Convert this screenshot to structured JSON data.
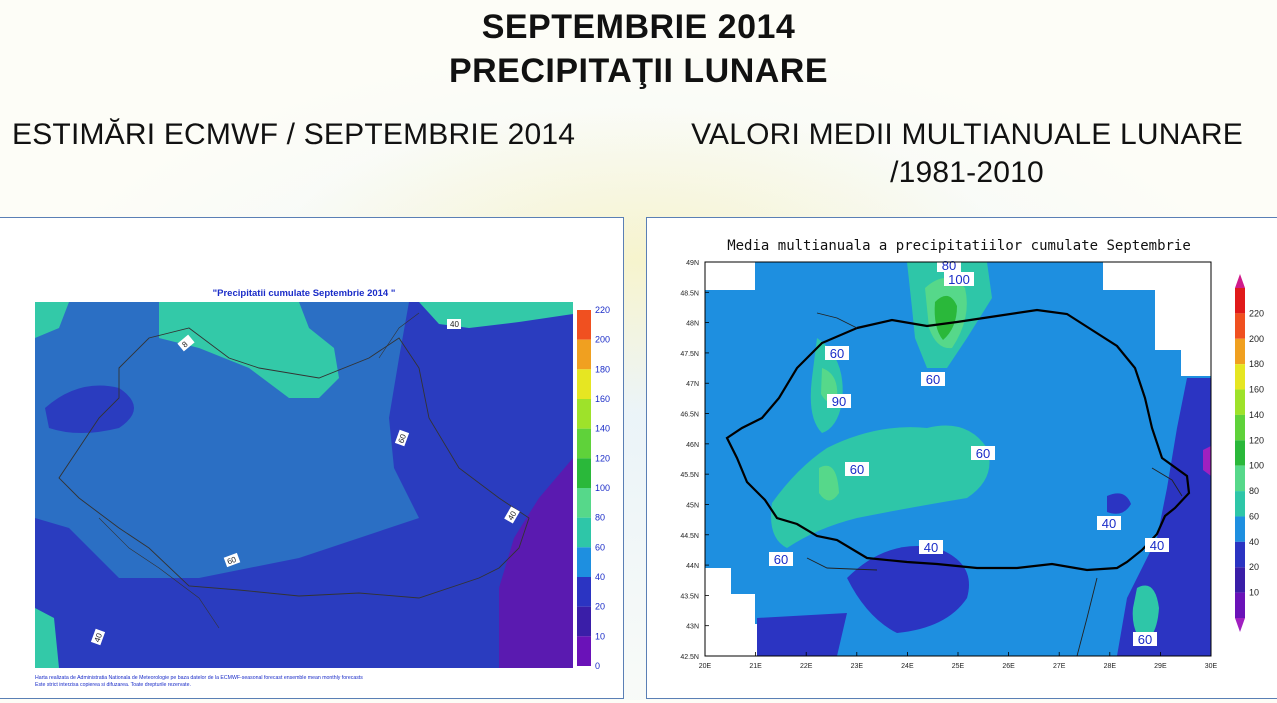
{
  "header": {
    "title_line1": "SEPTEMBRIE 2014",
    "title_line2": "PRECIPITAŢII LUNARE"
  },
  "left_panel": {
    "subtitle": "ESTIMĂRI ECMWF / SEPTEMBRIE 2014",
    "map_title": "\"Precipitatii cumulate Septembrie 2014 \"",
    "contour_labels": [
      "8",
      "40",
      "60",
      "40",
      "60",
      "40"
    ],
    "colorbar_ticks": [
      "220",
      "200",
      "180",
      "160",
      "140",
      "120",
      "100",
      "80",
      "60",
      "40",
      "20",
      "10",
      "0"
    ],
    "footer_line1": "Harta realizata de Administratia Nationala de Meteorologie pe baza datelor de la ECMWF-seasonal forecast ensemble mean monthly forecasts",
    "footer_line2": "Este strict interzisa copierea si difuzarea. Toate drepturile rezervate."
  },
  "right_panel": {
    "subtitle_line1": "VALORI MEDII MULTIANUALE LUNARE",
    "subtitle_line2": "/1981-2010",
    "map_title": "Media multianuala a precipitatiilor cumulate Septembrie",
    "contour_labels": [
      "80",
      "100",
      "60",
      "60",
      "90",
      "60",
      "60",
      "40",
      "40",
      "40",
      "60",
      "60"
    ],
    "colorbar_ticks": [
      "220",
      "200",
      "180",
      "160",
      "140",
      "120",
      "100",
      "80",
      "60",
      "40",
      "20",
      "10"
    ],
    "lat_ticks": [
      "49N",
      "48.5N",
      "48N",
      "47.5N",
      "47N",
      "46.5N",
      "46N",
      "45.5N",
      "45N",
      "44.5N",
      "44N",
      "43.5N",
      "43N",
      "42.5N"
    ],
    "lon_ticks": [
      "20E",
      "21E",
      "22E",
      "23E",
      "24E",
      "25E",
      "26E",
      "27E",
      "28E",
      "29E",
      "30E"
    ]
  },
  "colors": {
    "c0_10": "#6a12b8",
    "c10_20": "#3a1ea8",
    "c20_40": "#2b34c2",
    "c40_60": "#1e8fe0",
    "c60_80": "#2ec6a8",
    "c80_100": "#56d88a",
    "c100_120": "#2ab83a",
    "c120_140": "#5fd23a",
    "c140_160": "#9ee22a",
    "c160_180": "#e6e622",
    "c180_200": "#f0a020",
    "c200_220": "#f05020",
    "c220": "#e01a1a",
    "left_blue_dark": "#2a3cbf",
    "left_blue_mid": "#2b6fc4",
    "left_teal": "#33c9a8",
    "left_purple": "#5a1ab0"
  }
}
